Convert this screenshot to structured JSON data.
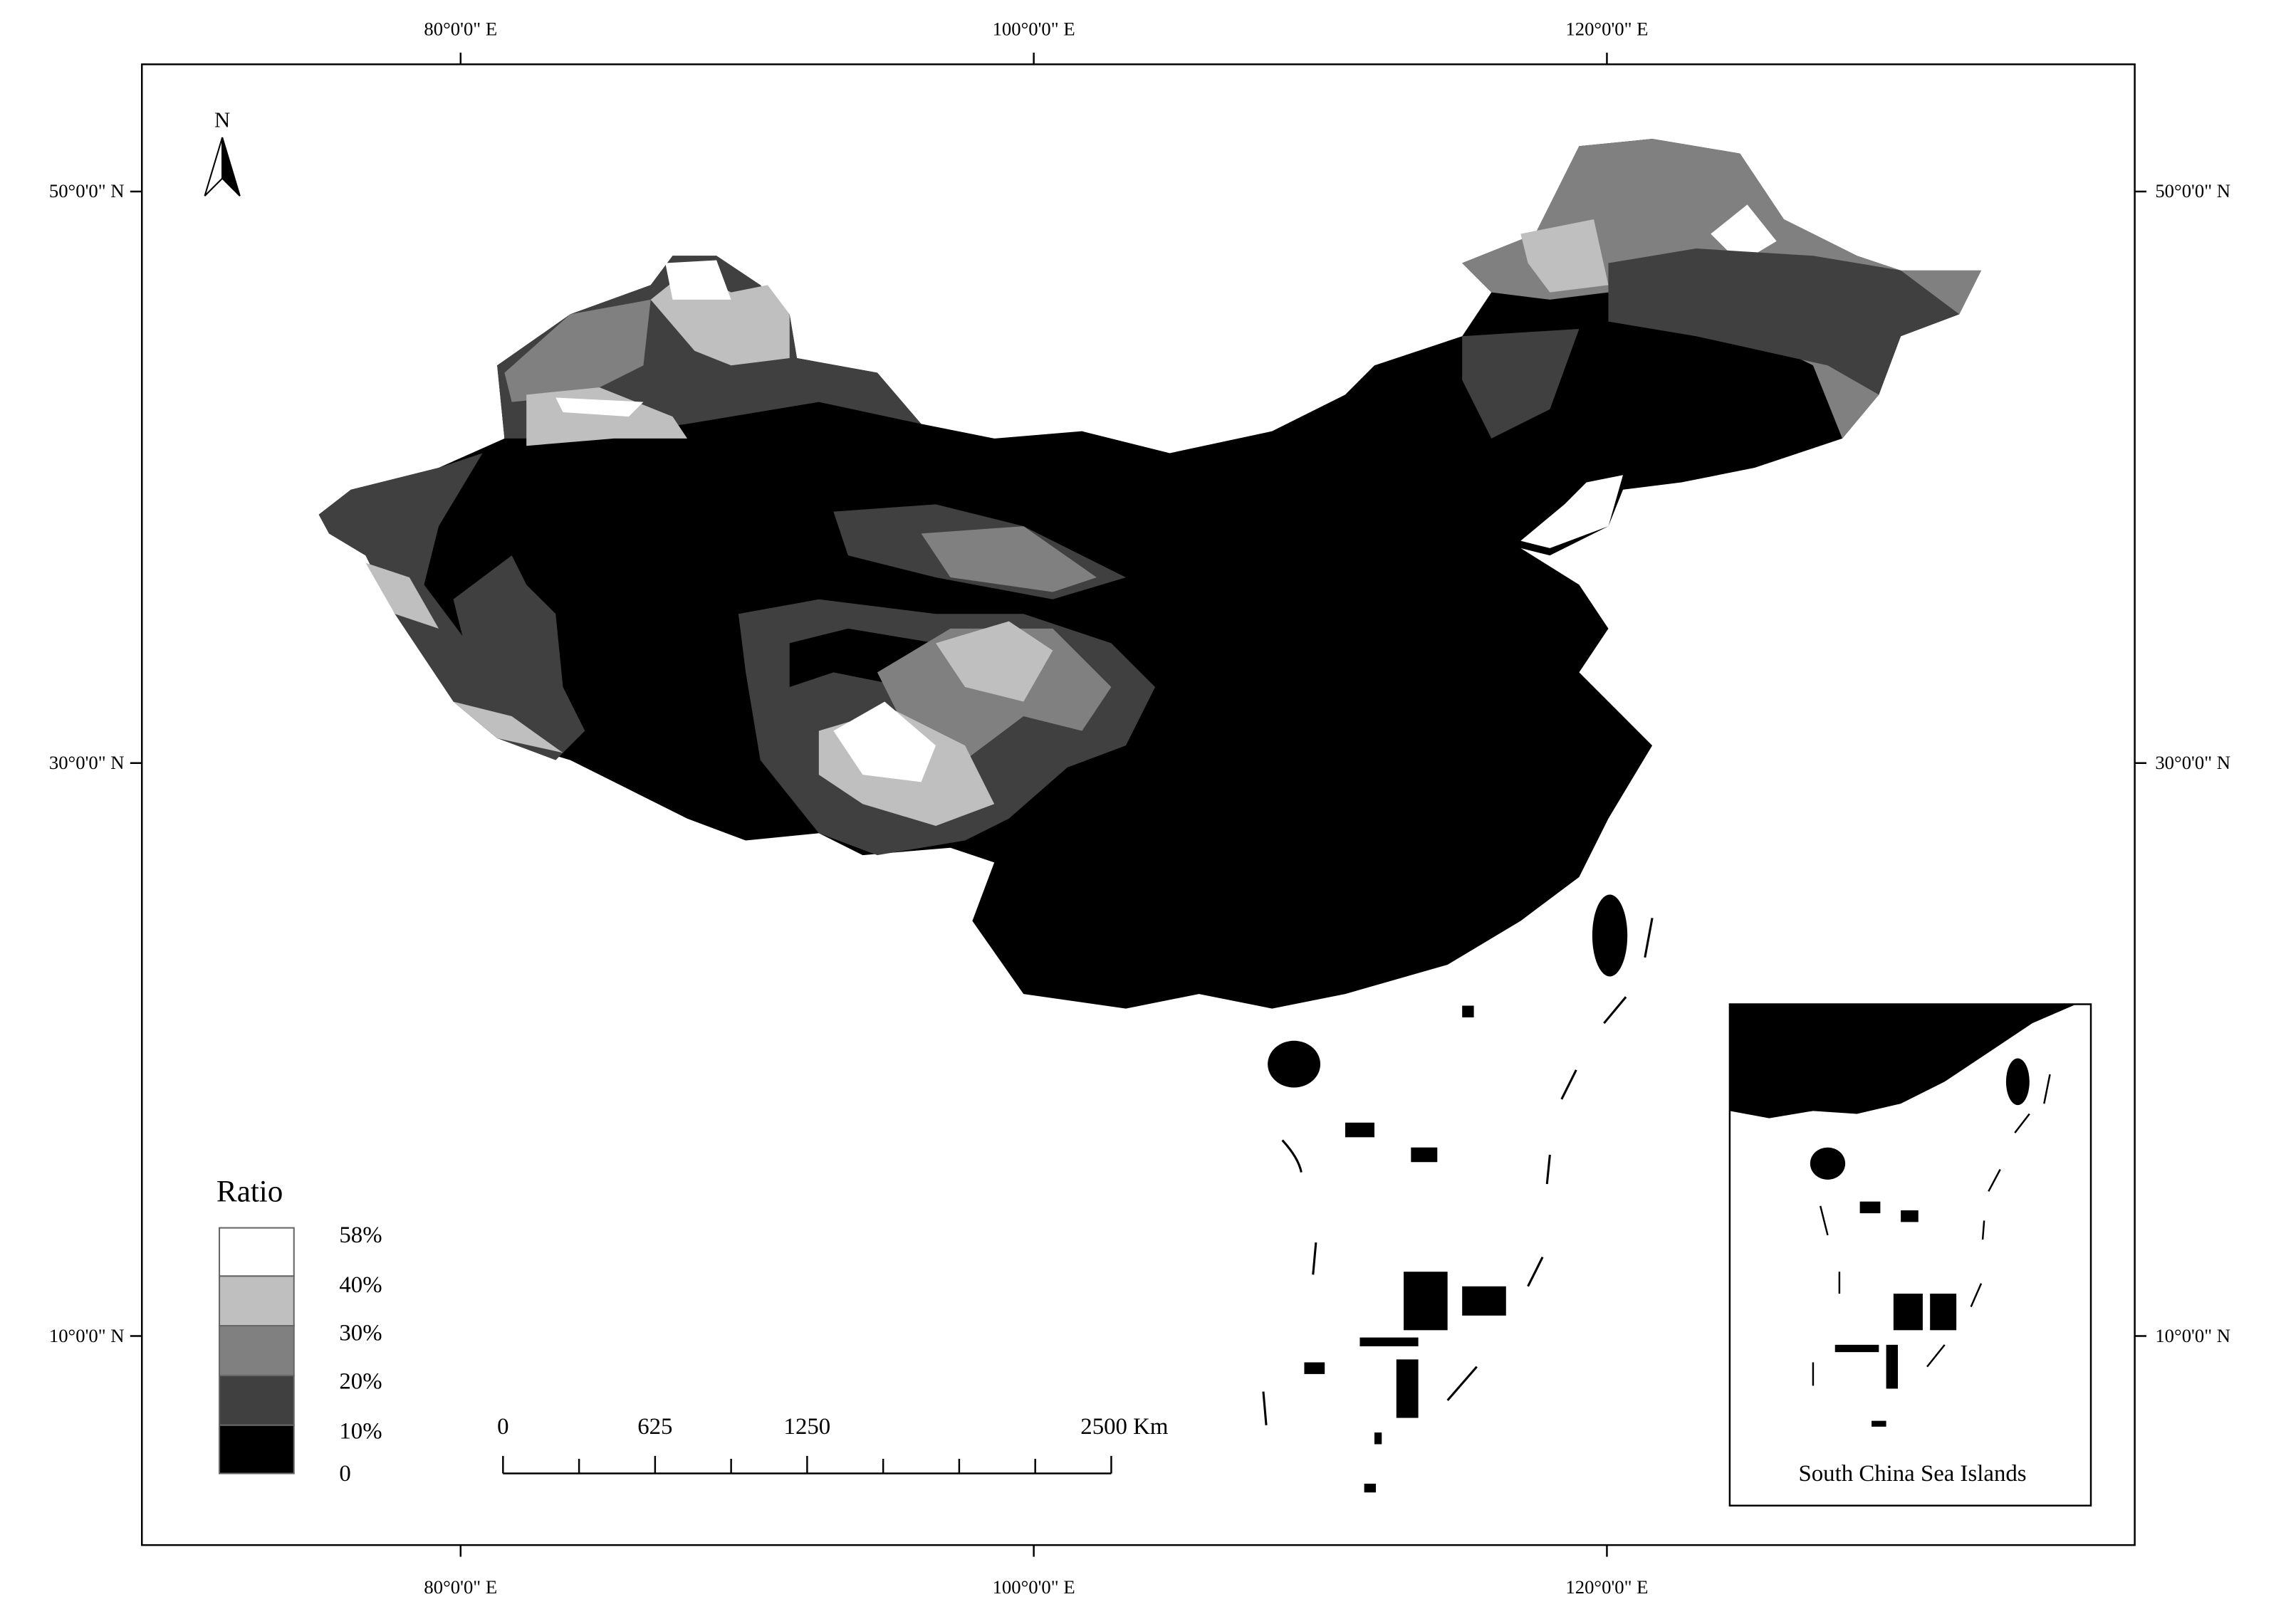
{
  "graticule": {
    "top": [
      "80°0'0\" E",
      "100°0'0\" E",
      "120°0'0\" E"
    ],
    "bottom": [
      "80°0'0\" E",
      "100°0'0\" E",
      "120°0'0\" E"
    ],
    "left": [
      "50°0'0\" N",
      "30°0'0\" N",
      "10°0'0\" N"
    ],
    "right": [
      "50°0'0\" N",
      "30°0'0\" N",
      "10°0'0\" N"
    ]
  },
  "north_arrow": "N",
  "legend": {
    "title": "Ratio",
    "labels": [
      "58%",
      "40%",
      "30%",
      "20%",
      "10%",
      "0"
    ]
  },
  "scale_bar": {
    "labels": [
      "0",
      "625",
      "1250",
      "2500 Km"
    ]
  },
  "inset": {
    "caption": "South China Sea Islands"
  }
}
